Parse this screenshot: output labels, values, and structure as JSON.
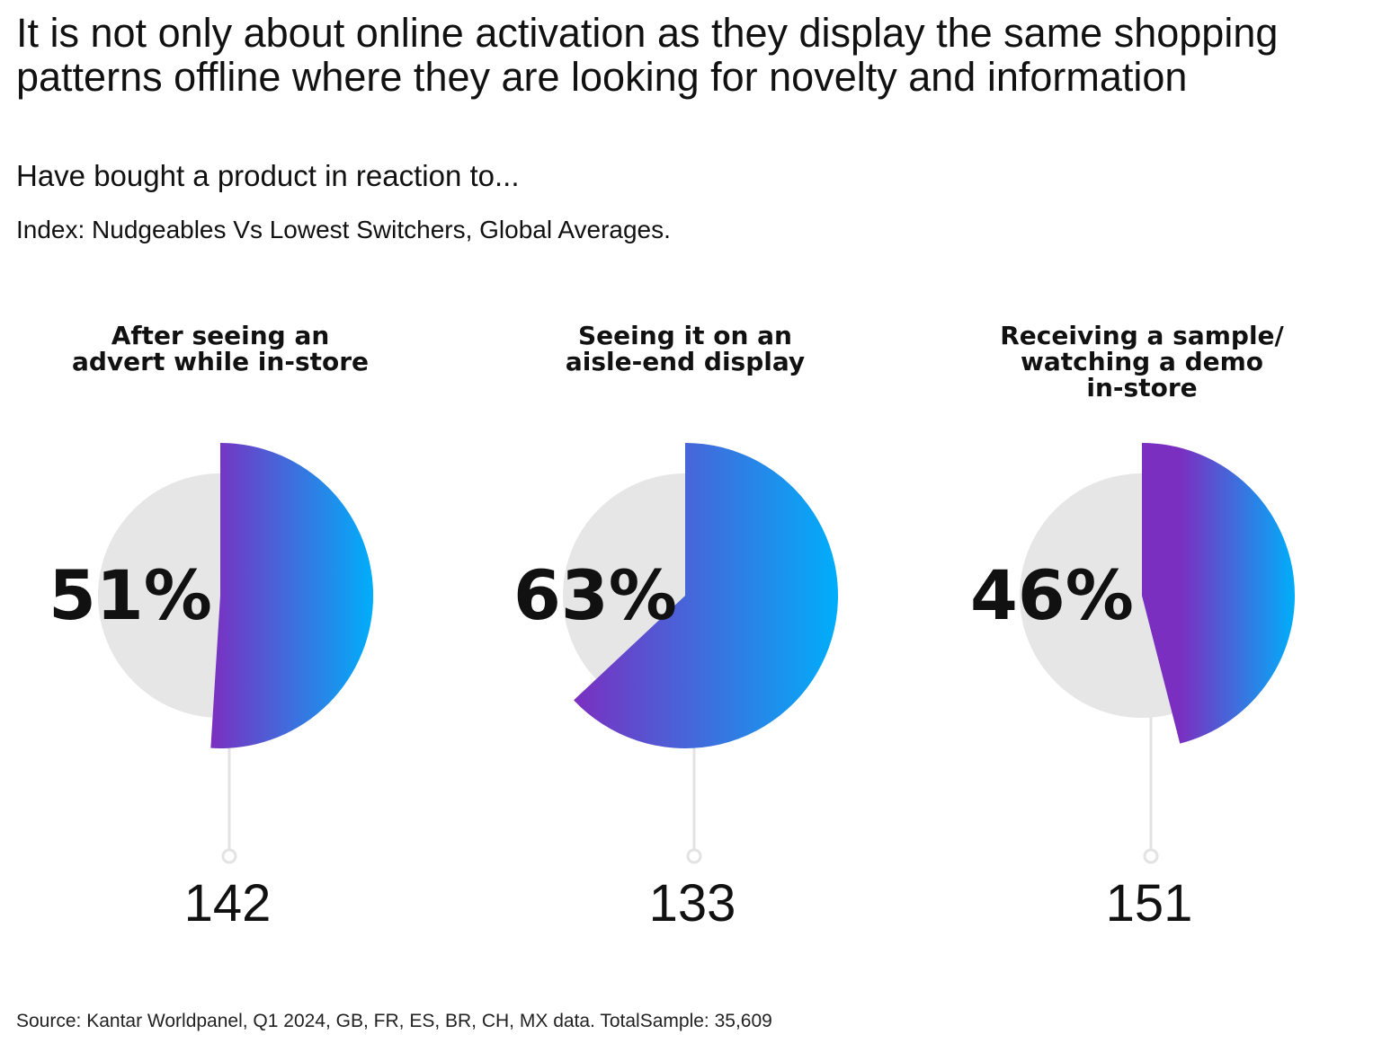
{
  "chart_data": {
    "type": "pie",
    "title": "It is not only about online activation as they display the same shopping patterns offline where they are looking for novelty and information",
    "subtitle": "Have bought a product in reaction to...",
    "index_note": "Index: Nudgeables Vs Lowest Switchers, Global Averages.",
    "source": "Source:  Kantar Worldpanel, Q1 2024, GB, FR, ES, BR, CH, MX data. TotalSample: 35,609",
    "colors": {
      "gradient_start": "#7B2FC0",
      "gradient_end": "#00AEFA",
      "background_disc": "#E6E6E6",
      "leader_line": "#E3E3E3"
    },
    "categories": [
      {
        "label_lines": [
          "After seeing an",
          "advert while in-store"
        ],
        "percent": 51,
        "percent_label": "51%",
        "index": 142,
        "index_label": "142"
      },
      {
        "label_lines": [
          "Seeing it on an",
          "aisle-end display"
        ],
        "percent": 63,
        "percent_label": "63%",
        "index": 133,
        "index_label": "133"
      },
      {
        "label_lines": [
          "Receiving a sample/",
          "watching a demo",
          "in-store"
        ],
        "percent": 46,
        "percent_label": "46%",
        "index": 151,
        "index_label": "151"
      }
    ]
  }
}
